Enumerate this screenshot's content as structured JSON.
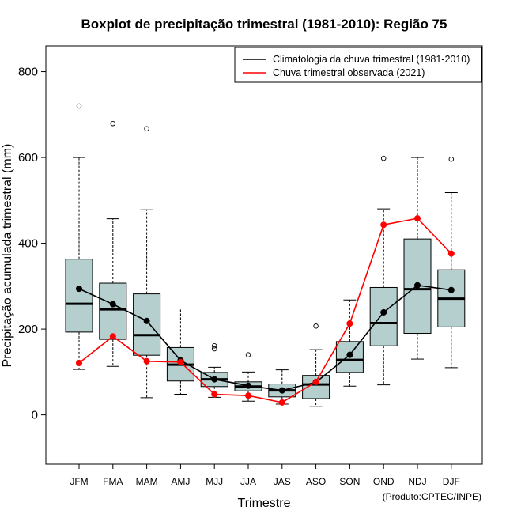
{
  "chart_data": {
    "type": "boxplot",
    "title": "Boxplot de precipitação trimestral (1981-2010): Região 75",
    "xlabel": "Trimestre",
    "ylabel": "Precipitação acumulada trimestral (mm)",
    "ylim": [
      -115,
      860
    ],
    "yticks": [
      0,
      200,
      400,
      600,
      800
    ],
    "ytick_labels": [
      "0",
      "200",
      "400",
      "600",
      "800"
    ],
    "categories": [
      "JFM",
      "FMA",
      "MAM",
      "AMJ",
      "MJJ",
      "JJA",
      "JAS",
      "ASO",
      "SON",
      "OND",
      "NDJ",
      "DJF"
    ],
    "boxes": [
      {
        "min": 106,
        "q1": 193,
        "median": 259,
        "q3": 363,
        "max": 600,
        "outliers": [
          720
        ]
      },
      {
        "min": 113,
        "q1": 176,
        "median": 246,
        "q3": 307,
        "max": 457,
        "outliers": [
          679
        ]
      },
      {
        "min": 40,
        "q1": 139,
        "median": 186,
        "q3": 282,
        "max": 478,
        "outliers": [
          667
        ]
      },
      {
        "min": 48,
        "q1": 79,
        "median": 117,
        "q3": 157,
        "max": 249,
        "outliers": []
      },
      {
        "min": 41,
        "q1": 66,
        "median": 83,
        "q3": 99,
        "max": 111,
        "outliers": [
          161,
          154
        ]
      },
      {
        "min": 32,
        "q1": 56,
        "median": 66,
        "q3": 77,
        "max": 100,
        "outliers": [
          140
        ]
      },
      {
        "min": 25,
        "q1": 42,
        "median": 57,
        "q3": 72,
        "max": 105,
        "outliers": []
      },
      {
        "min": 19,
        "q1": 38,
        "median": 71,
        "q3": 92,
        "max": 152,
        "outliers": [
          207
        ]
      },
      {
        "min": 67,
        "q1": 99,
        "median": 128,
        "q3": 171,
        "max": 268,
        "outliers": []
      },
      {
        "min": 70,
        "q1": 161,
        "median": 214,
        "q3": 297,
        "max": 480,
        "outliers": [
          598
        ]
      },
      {
        "min": 130,
        "q1": 190,
        "median": 293,
        "q3": 410,
        "max": 600,
        "outliers": []
      },
      {
        "min": 110,
        "q1": 205,
        "median": 271,
        "q3": 338,
        "max": 518,
        "outliers": [
          596
        ]
      }
    ],
    "series": [
      {
        "name": "Climatologia da chuva trimestral (1981-2010)",
        "color": "#000000",
        "values": [
          294,
          258,
          219,
          127,
          83,
          68,
          57,
          76,
          140,
          239,
          302,
          291
        ]
      },
      {
        "name": "Chuva trimestral observada (2021)",
        "color": "#ff0000",
        "values": [
          121,
          183,
          125,
          123,
          48,
          45,
          29,
          77,
          213,
          443,
          458,
          376
        ]
      }
    ],
    "box_fill_color": "#b5cfcf",
    "legend_position": "top-right",
    "credit": "(Produto:CPTEC/INPE)"
  }
}
